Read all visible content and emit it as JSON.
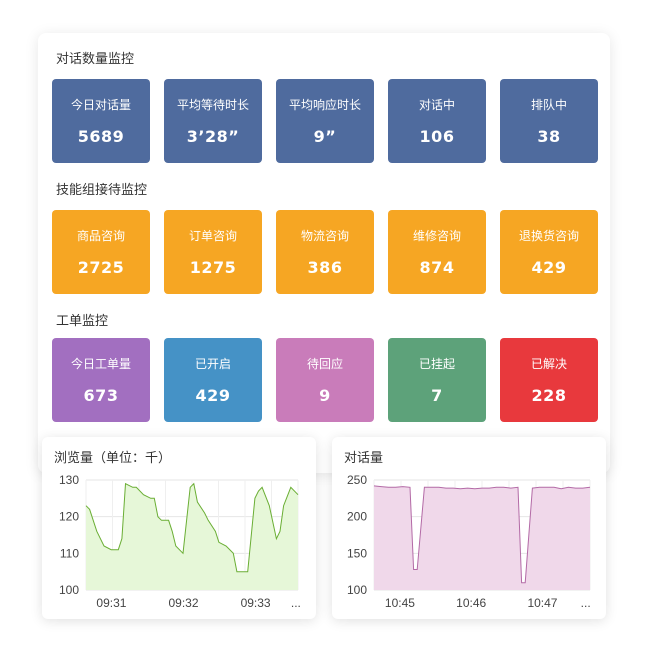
{
  "colors": {
    "blue_card": "#4f6b9e",
    "orange_card": "#f6a623",
    "purple_card": "#a26fc0",
    "sky_card": "#4592c6",
    "pink_card": "#c97cba",
    "green_card": "#5da27a",
    "red_card": "#e8393d",
    "line_green": "#6aae34",
    "fill_green": "#e6f7d8",
    "line_mauve": "#b36aa6",
    "fill_mauve": "#f0d8ea"
  },
  "sections": [
    {
      "title": "对话数量监控",
      "cards": [
        {
          "label": "今日对话量",
          "value": "5689",
          "color": "#4f6b9e"
        },
        {
          "label": "平均等待时长",
          "value": "3’28”",
          "color": "#4f6b9e"
        },
        {
          "label": "平均响应时长",
          "value": "9”",
          "color": "#4f6b9e"
        },
        {
          "label": "对话中",
          "value": "106",
          "color": "#4f6b9e"
        },
        {
          "label": "排队中",
          "value": "38",
          "color": "#4f6b9e"
        }
      ]
    },
    {
      "title": "技能组接待监控",
      "cards": [
        {
          "label": "商品咨询",
          "value": "2725",
          "color": "#f6a623"
        },
        {
          "label": "订单咨询",
          "value": "1275",
          "color": "#f6a623"
        },
        {
          "label": "物流咨询",
          "value": "386",
          "color": "#f6a623"
        },
        {
          "label": "维修咨询",
          "value": "874",
          "color": "#f6a623"
        },
        {
          "label": "退换货咨询",
          "value": "429",
          "color": "#f6a623"
        }
      ]
    },
    {
      "title": "工单监控",
      "cards": [
        {
          "label": "今日工单量",
          "value": "673",
          "color": "#a26fc0"
        },
        {
          "label": "已开启",
          "value": "429",
          "color": "#4592c6"
        },
        {
          "label": "待回应",
          "value": "9",
          "color": "#c97cba"
        },
        {
          "label": "已挂起",
          "value": "7",
          "color": "#5da27a"
        },
        {
          "label": "已解决",
          "value": "228",
          "color": "#e8393d"
        }
      ]
    }
  ],
  "chart_data": [
    {
      "type": "area",
      "title": "浏览量（单位：千）",
      "xlabel": "",
      "ylabel": "",
      "ylim": [
        100,
        130
      ],
      "yticks": [
        100,
        110,
        120,
        130
      ],
      "xtick_labels": [
        "09:31",
        "09:32",
        "09:33",
        "..."
      ],
      "grid": true,
      "series": [
        {
          "x": [
            0,
            0.5,
            1.5,
            2.5,
            3.5,
            4.5,
            5,
            5.5,
            6.5,
            7,
            8,
            9,
            9.5,
            10,
            10.5,
            11.5,
            12,
            12.5,
            13.5,
            14.5,
            15,
            15.5,
            16.5,
            17,
            18,
            18.5,
            19.5,
            20.5,
            21,
            21.5,
            22.5,
            23.5,
            24,
            24.5,
            25.5,
            26.5,
            27,
            27.5,
            28.5,
            29.5
          ],
          "y": [
            123,
            122,
            116,
            112,
            111,
            111,
            114,
            129,
            128,
            128,
            126,
            125,
            125,
            120,
            119,
            119,
            116,
            112,
            110,
            128,
            129,
            124,
            121,
            119,
            116,
            113,
            112,
            110,
            105,
            105,
            105,
            125,
            127,
            128,
            123,
            114,
            116,
            123,
            128,
            126
          ]
        }
      ]
    },
    {
      "type": "area",
      "title": "对话量",
      "xlabel": "",
      "ylabel": "",
      "ylim": [
        100,
        250
      ],
      "yticks": [
        100,
        150,
        200,
        250
      ],
      "xtick_labels": [
        "10:45",
        "10:46",
        "10:47",
        "..."
      ],
      "grid": true,
      "series": [
        {
          "x": [
            0,
            1,
            2,
            3,
            4,
            5,
            5.5,
            6,
            7,
            8,
            9,
            10,
            11,
            12,
            13,
            14,
            15,
            16,
            17,
            18,
            19,
            20,
            20.5,
            21,
            22,
            23,
            24,
            25,
            26,
            27,
            28,
            29,
            30
          ],
          "y": [
            242,
            241,
            240,
            240,
            241,
            240,
            128,
            128,
            240,
            240,
            240,
            239,
            239,
            238,
            239,
            238,
            239,
            239,
            240,
            240,
            239,
            240,
            110,
            110,
            239,
            240,
            240,
            240,
            238,
            240,
            239,
            239,
            240
          ]
        }
      ]
    }
  ]
}
